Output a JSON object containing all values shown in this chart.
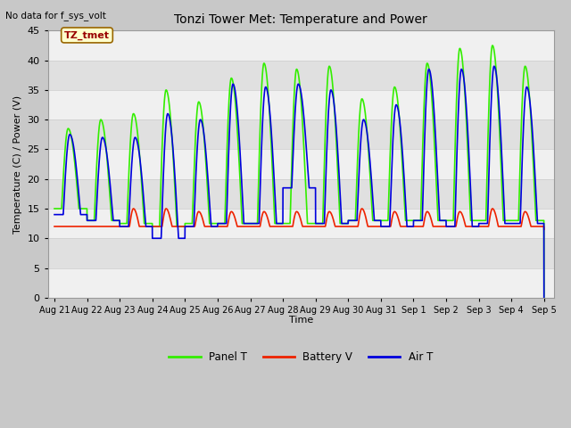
{
  "title": "Tonzi Tower Met: Temperature and Power",
  "top_left_text": "No data for f_sys_volt",
  "ylabel": "Temperature (C) / Power (V)",
  "xlabel": "Time",
  "ylim": [
    0,
    45
  ],
  "yticks": [
    0,
    5,
    10,
    15,
    20,
    25,
    30,
    35,
    40,
    45
  ],
  "xtick_labels": [
    "Aug 21",
    "Aug 22",
    "Aug 23",
    "Aug 24",
    "Aug 25",
    "Aug 26",
    "Aug 27",
    "Aug 28",
    "Aug 29",
    "Aug 30",
    "Aug 31",
    "Sep 1",
    "Sep 2",
    "Sep 3",
    "Sep 4",
    "Sep 5"
  ],
  "legend_entries": [
    "Panel T",
    "Battery V",
    "Air T"
  ],
  "panel_color": "#33ee00",
  "battery_color": "#ee2200",
  "air_color": "#0000dd",
  "annotation_text": "TZ_tmet",
  "annotation_bg": "#ffffcc",
  "annotation_border": "#996600",
  "annotation_text_color": "#990000",
  "fig_bg": "#c8c8c8",
  "band_colors_light": "#f8f8f8",
  "band_colors_dark": "#e0e0e0"
}
